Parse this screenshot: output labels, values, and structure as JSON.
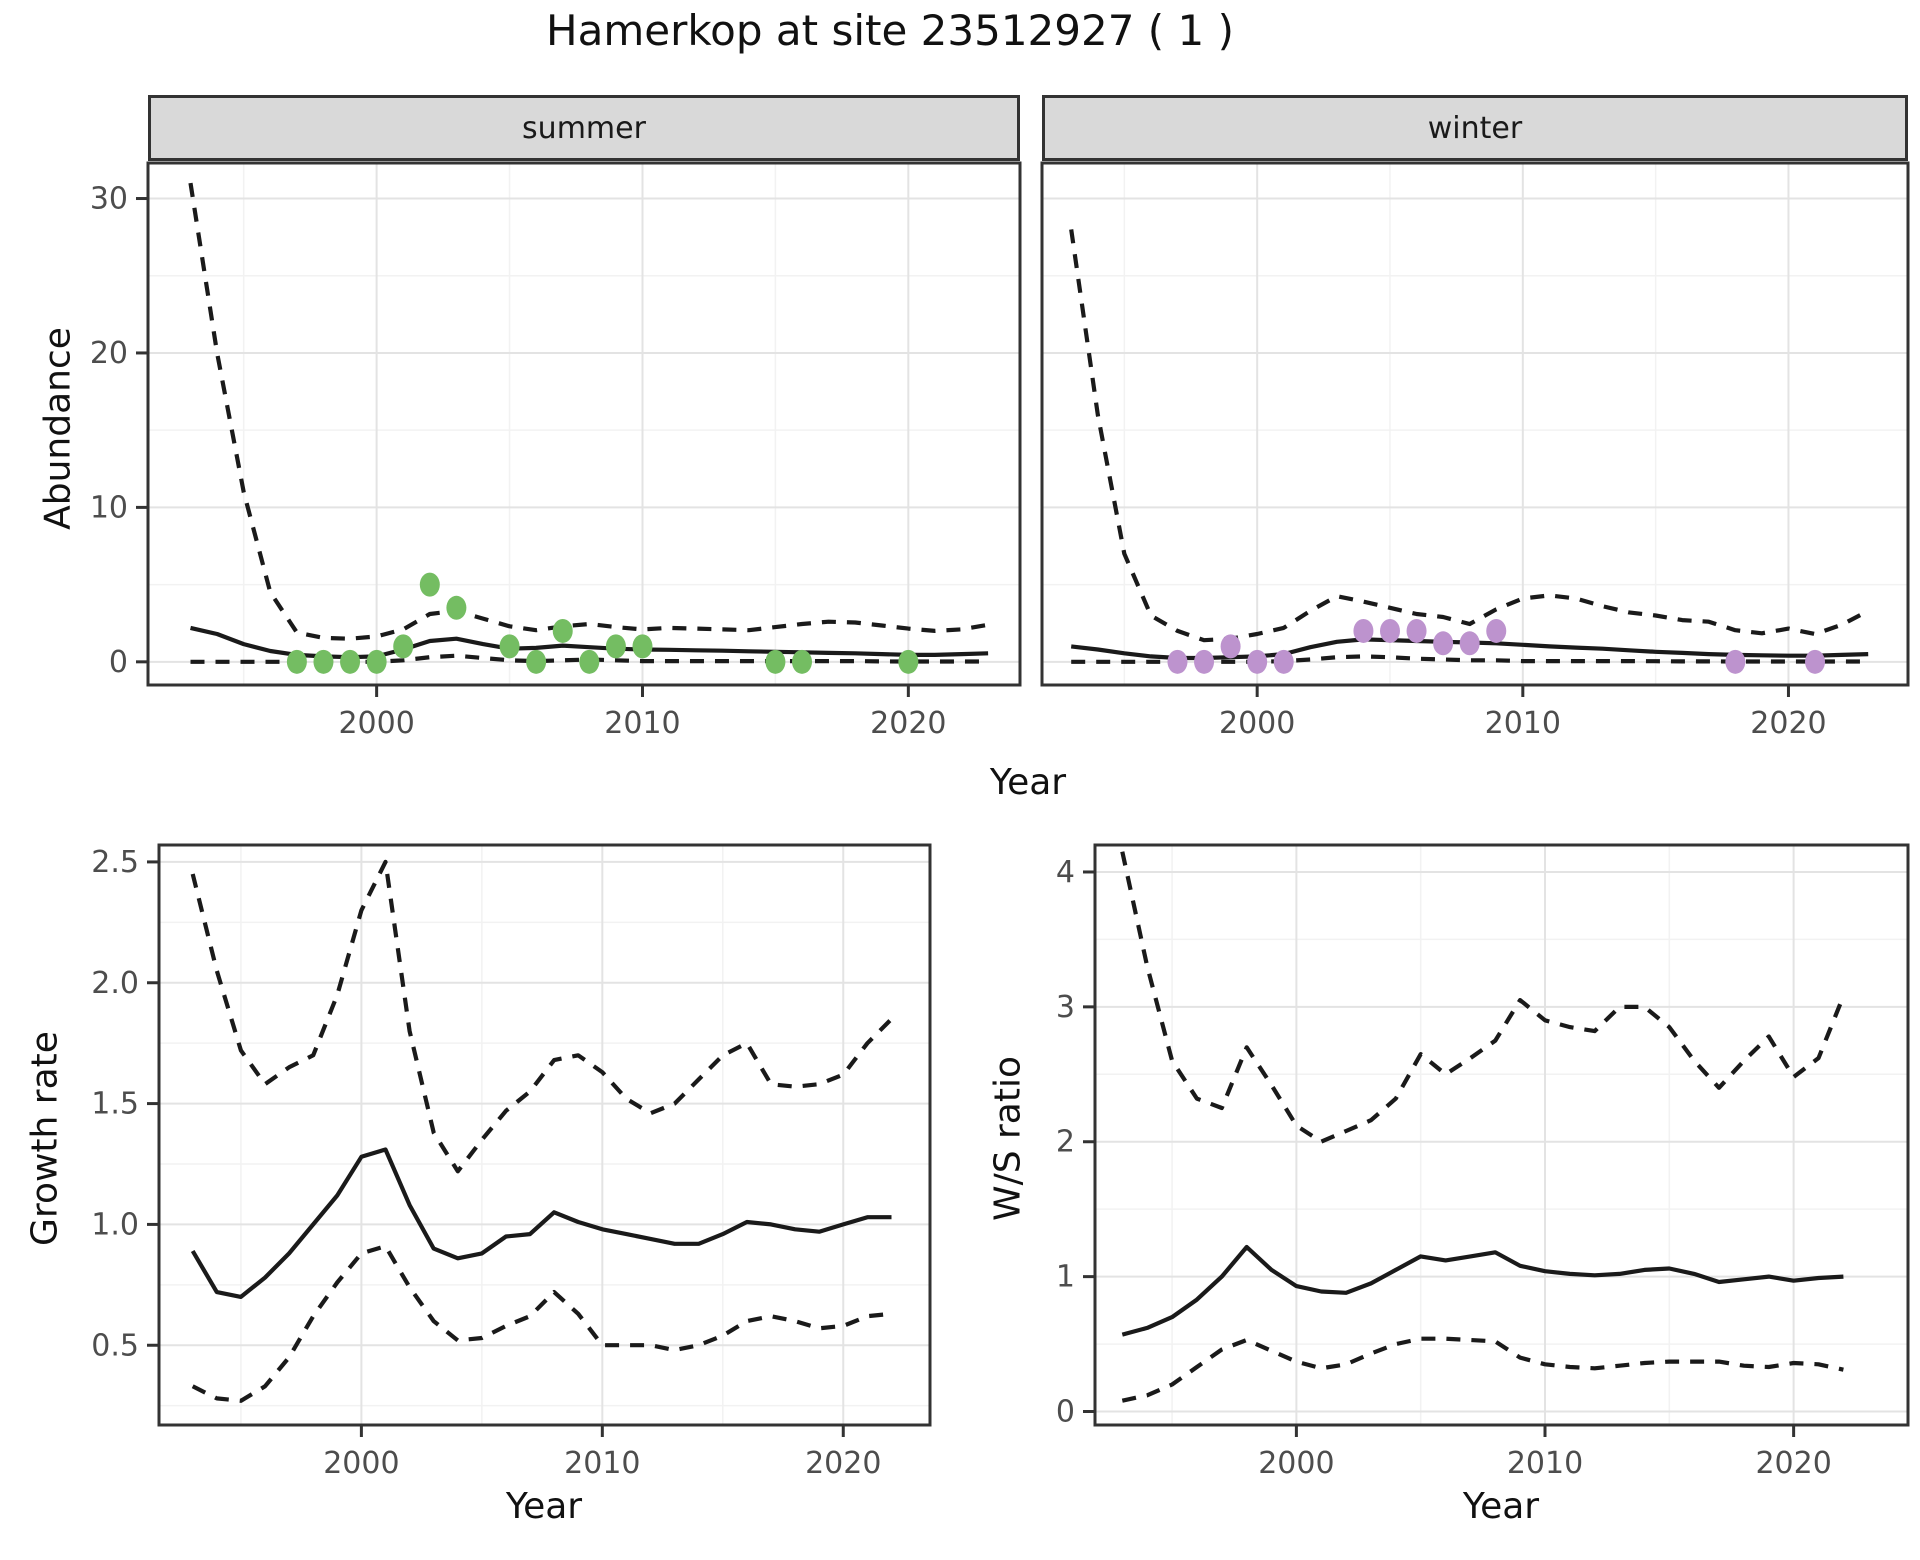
{
  "title": "Hamerkop at site 23512927 ( 1 )",
  "axis_titles": {
    "abundance": "Abundance",
    "year_top": "Year",
    "growth_rate": "Growth rate",
    "year_bottom_left": "Year",
    "ws_ratio": "W/S ratio",
    "year_bottom_right": "Year"
  },
  "facets": {
    "summer": "summer",
    "winter": "winter"
  },
  "colors": {
    "summer_points": "#74bd62",
    "winter_points": "#bd93ce",
    "line": "#1a1a1a",
    "strip_bg": "#d9d9d9",
    "grid_major": "#e3e3e3",
    "grid_minor": "#f2f2f2",
    "tick_text": "#4d4d4d",
    "panel_border": "#333333"
  },
  "chart_data": [
    {
      "type": "line",
      "id": "abundance-summer",
      "title": "summer",
      "xlabel": "Year",
      "ylabel": "Abundance",
      "xlim": [
        1991.4,
        2024.2
      ],
      "ylim": [
        -1.5,
        32.3
      ],
      "xticks": {
        "values": [
          2000,
          2010,
          2020
        ],
        "labels": [
          "2000",
          "2010",
          "2020"
        ]
      },
      "yticks": {
        "values": [
          0,
          10,
          20,
          30
        ],
        "labels": [
          "0",
          "10",
          "20",
          "30"
        ]
      },
      "xminor": [
        1995,
        2005,
        2015
      ],
      "yminor": [
        5,
        15,
        25
      ],
      "x": [
        1993,
        1994,
        1995,
        1996,
        1997,
        1998,
        1999,
        2000,
        2001,
        2002,
        2003,
        2004,
        2005,
        2006,
        2007,
        2008,
        2009,
        2010,
        2011,
        2012,
        2013,
        2014,
        2015,
        2016,
        2017,
        2018,
        2019,
        2020,
        2021,
        2022,
        2023
      ],
      "series": [
        {
          "name": "upper_ci",
          "style": "dashed",
          "values": [
            31,
            20,
            11,
            4.5,
            1.9,
            1.55,
            1.5,
            1.65,
            2.1,
            3.1,
            3.3,
            2.8,
            2.3,
            2.05,
            2.3,
            2.45,
            2.25,
            2.1,
            2.2,
            2.15,
            2.1,
            2.05,
            2.25,
            2.45,
            2.6,
            2.55,
            2.35,
            2.15,
            2.0,
            2.1,
            2.4
          ]
        },
        {
          "name": "median",
          "style": "solid",
          "values": [
            2.2,
            1.8,
            1.15,
            0.7,
            0.45,
            0.35,
            0.3,
            0.35,
            0.8,
            1.35,
            1.5,
            1.15,
            0.85,
            0.9,
            1.05,
            0.95,
            0.85,
            0.8,
            0.78,
            0.75,
            0.72,
            0.68,
            0.65,
            0.62,
            0.58,
            0.55,
            0.5,
            0.45,
            0.45,
            0.5,
            0.55
          ]
        },
        {
          "name": "lower_ci",
          "style": "dashed",
          "values": [
            0,
            0,
            0,
            0,
            0,
            0,
            0,
            0,
            0.1,
            0.3,
            0.4,
            0.25,
            0.1,
            0.05,
            0.1,
            0.15,
            0.1,
            0.05,
            0.05,
            0.05,
            0.05,
            0.05,
            0.05,
            0.05,
            0.05,
            0.05,
            0.03,
            0.02,
            0.02,
            0.02,
            0.02
          ]
        }
      ],
      "points": {
        "name": "summer-observations",
        "color": "#74bd62",
        "data": [
          [
            1997,
            0
          ],
          [
            1998,
            0
          ],
          [
            1999,
            0
          ],
          [
            2000,
            0
          ],
          [
            2001,
            1
          ],
          [
            2002,
            5
          ],
          [
            2003,
            3.5
          ],
          [
            2005,
            1
          ],
          [
            2006,
            0
          ],
          [
            2007,
            2
          ],
          [
            2008,
            0
          ],
          [
            2009,
            1
          ],
          [
            2010,
            1
          ],
          [
            2015,
            0
          ],
          [
            2016,
            0
          ],
          [
            2020,
            0
          ]
        ]
      }
    },
    {
      "type": "line",
      "id": "abundance-winter",
      "title": "winter",
      "xlabel": "Year",
      "ylabel": "Abundance",
      "xlim": [
        1991.9,
        2024.5
      ],
      "ylim": [
        -1.5,
        32.3
      ],
      "xticks": {
        "values": [
          2000,
          2010,
          2020
        ],
        "labels": [
          "2000",
          "2010",
          "2020"
        ]
      },
      "yticks": {
        "values": [],
        "labels": []
      },
      "xminor": [
        1995,
        2005,
        2015
      ],
      "yminor": [
        5,
        15,
        25
      ],
      "ymajor_nolabel": [
        0,
        10,
        20,
        30
      ],
      "x": [
        1993,
        1994,
        1995,
        1996,
        1997,
        1998,
        1999,
        2000,
        2001,
        2002,
        2003,
        2004,
        2005,
        2006,
        2007,
        2008,
        2009,
        2010,
        2011,
        2012,
        2013,
        2014,
        2015,
        2016,
        2017,
        2018,
        2019,
        2020,
        2021,
        2022,
        2023
      ],
      "series": [
        {
          "name": "upper_ci",
          "style": "dashed",
          "values": [
            28,
            16,
            7,
            3.0,
            2.0,
            1.4,
            1.5,
            1.8,
            2.2,
            3.3,
            4.25,
            3.9,
            3.5,
            3.1,
            2.9,
            2.45,
            3.4,
            4.1,
            4.3,
            4.1,
            3.6,
            3.2,
            3.0,
            2.7,
            2.6,
            2.05,
            1.85,
            2.15,
            1.8,
            2.4,
            3.3
          ]
        },
        {
          "name": "median",
          "style": "solid",
          "values": [
            1.0,
            0.8,
            0.55,
            0.35,
            0.25,
            0.25,
            0.3,
            0.35,
            0.5,
            0.95,
            1.3,
            1.45,
            1.4,
            1.35,
            1.3,
            1.25,
            1.2,
            1.1,
            1.0,
            0.92,
            0.85,
            0.75,
            0.65,
            0.58,
            0.5,
            0.45,
            0.42,
            0.4,
            0.4,
            0.45,
            0.5
          ]
        },
        {
          "name": "lower_ci",
          "style": "dashed",
          "values": [
            0,
            0,
            0,
            0,
            0,
            0,
            0,
            0,
            0.05,
            0.15,
            0.3,
            0.35,
            0.3,
            0.2,
            0.15,
            0.1,
            0.1,
            0.05,
            0.05,
            0.05,
            0.05,
            0.05,
            0.04,
            0.03,
            0.03,
            0.02,
            0.02,
            0.02,
            0.02,
            0.02,
            0.02
          ]
        }
      ],
      "points": {
        "name": "winter-observations",
        "color": "#bd93ce",
        "data": [
          [
            1997,
            0
          ],
          [
            1998,
            0
          ],
          [
            1999,
            1
          ],
          [
            2000,
            0
          ],
          [
            2001,
            0
          ],
          [
            2004,
            2
          ],
          [
            2005,
            2
          ],
          [
            2006,
            2
          ],
          [
            2007,
            1.2
          ],
          [
            2008,
            1.2
          ],
          [
            2009,
            2
          ],
          [
            2018,
            0
          ],
          [
            2021,
            0
          ]
        ]
      }
    },
    {
      "type": "line",
      "id": "growth-rate",
      "title": "",
      "xlabel": "Year",
      "ylabel": "Growth rate",
      "xlim": [
        1991.6,
        2023.6
      ],
      "ylim": [
        0.17,
        2.57
      ],
      "xticks": {
        "values": [
          2000,
          2010,
          2020
        ],
        "labels": [
          "2000",
          "2010",
          "2020"
        ]
      },
      "yticks": {
        "values": [
          0.5,
          1.0,
          1.5,
          2.0,
          2.5
        ],
        "labels": [
          "0.5",
          "1.0",
          "1.5",
          "2.0",
          "2.5"
        ]
      },
      "xminor": [
        1995,
        2005,
        2015
      ],
      "yminor": [
        0.25,
        0.75,
        1.25,
        1.75,
        2.25
      ],
      "x": [
        1993,
        1994,
        1995,
        1996,
        1997,
        1998,
        1999,
        2000,
        2001,
        2002,
        2003,
        2004,
        2005,
        2006,
        2007,
        2008,
        2009,
        2010,
        2011,
        2012,
        2013,
        2014,
        2015,
        2016,
        2017,
        2018,
        2019,
        2020,
        2021,
        2022
      ],
      "series": [
        {
          "name": "upper_ci",
          "style": "dashed",
          "values": [
            2.45,
            2.05,
            1.72,
            1.58,
            1.65,
            1.7,
            1.95,
            2.3,
            2.5,
            1.8,
            1.38,
            1.22,
            1.35,
            1.47,
            1.55,
            1.68,
            1.7,
            1.63,
            1.52,
            1.46,
            1.5,
            1.6,
            1.7,
            1.75,
            1.58,
            1.57,
            1.58,
            1.62,
            1.75,
            1.85
          ]
        },
        {
          "name": "median",
          "style": "solid",
          "values": [
            0.89,
            0.72,
            0.7,
            0.78,
            0.88,
            1.0,
            1.12,
            1.28,
            1.31,
            1.08,
            0.9,
            0.86,
            0.88,
            0.95,
            0.96,
            1.05,
            1.01,
            0.98,
            0.96,
            0.94,
            0.92,
            0.92,
            0.96,
            1.01,
            1.0,
            0.98,
            0.97,
            1.0,
            1.03,
            1.03
          ]
        },
        {
          "name": "lower_ci",
          "style": "dashed",
          "values": [
            0.33,
            0.28,
            0.27,
            0.33,
            0.45,
            0.62,
            0.76,
            0.88,
            0.91,
            0.74,
            0.6,
            0.52,
            0.53,
            0.58,
            0.62,
            0.72,
            0.63,
            0.5,
            0.5,
            0.5,
            0.48,
            0.5,
            0.54,
            0.6,
            0.62,
            0.6,
            0.57,
            0.58,
            0.62,
            0.63
          ]
        }
      ],
      "points": null
    },
    {
      "type": "line",
      "id": "ws-ratio",
      "title": "",
      "xlabel": "Year",
      "ylabel": "W/S ratio",
      "xlim": [
        1991.9,
        2024.6
      ],
      "ylim": [
        -0.1,
        4.2
      ],
      "xticks": {
        "values": [
          2000,
          2010,
          2020
        ],
        "labels": [
          "2000",
          "2010",
          "2020"
        ]
      },
      "yticks": {
        "values": [
          0,
          1,
          2,
          3,
          4
        ],
        "labels": [
          "0",
          "1",
          "2",
          "3",
          "4"
        ]
      },
      "xminor": [
        1995,
        2005,
        2015
      ],
      "yminor": [
        0.5,
        1.5,
        2.5,
        3.5
      ],
      "x": [
        1993,
        1994,
        1995,
        1996,
        1997,
        1998,
        1999,
        2000,
        2001,
        2002,
        2003,
        2004,
        2005,
        2006,
        2007,
        2008,
        2009,
        2010,
        2011,
        2012,
        2013,
        2014,
        2015,
        2016,
        2017,
        2018,
        2019,
        2020,
        2021,
        2022
      ],
      "series": [
        {
          "name": "upper_ci",
          "style": "dashed",
          "values": [
            4.15,
            3.3,
            2.6,
            2.32,
            2.25,
            2.7,
            2.42,
            2.12,
            2.0,
            2.08,
            2.16,
            2.32,
            2.65,
            2.5,
            2.62,
            2.75,
            3.05,
            2.9,
            2.85,
            2.82,
            3.0,
            3.0,
            2.85,
            2.6,
            2.4,
            2.6,
            2.78,
            2.48,
            2.62,
            3.08
          ]
        },
        {
          "name": "median",
          "style": "solid",
          "values": [
            0.57,
            0.62,
            0.7,
            0.83,
            1.0,
            1.22,
            1.05,
            0.93,
            0.89,
            0.88,
            0.95,
            1.05,
            1.15,
            1.12,
            1.15,
            1.18,
            1.08,
            1.04,
            1.02,
            1.01,
            1.02,
            1.05,
            1.06,
            1.02,
            0.96,
            0.98,
            1.0,
            0.97,
            0.99,
            1.0
          ]
        },
        {
          "name": "lower_ci",
          "style": "dashed",
          "values": [
            0.08,
            0.12,
            0.2,
            0.33,
            0.46,
            0.53,
            0.45,
            0.37,
            0.32,
            0.35,
            0.43,
            0.5,
            0.54,
            0.54,
            0.53,
            0.52,
            0.4,
            0.35,
            0.33,
            0.32,
            0.34,
            0.36,
            0.37,
            0.37,
            0.37,
            0.34,
            0.33,
            0.36,
            0.35,
            0.31
          ]
        }
      ],
      "points": null
    }
  ]
}
